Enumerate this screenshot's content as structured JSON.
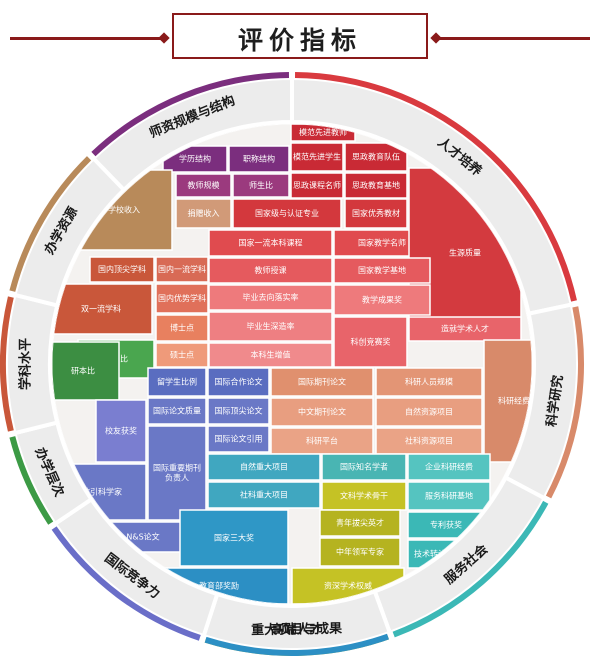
{
  "title": "评价指标",
  "categories": [
    {
      "key": "teachers",
      "label": "师资规模与结构",
      "color": "#7b2e7e"
    },
    {
      "key": "talent",
      "label": "人才培养",
      "color": "#d93a3f"
    },
    {
      "key": "research",
      "label": "科学研究",
      "color": "#d88a6a"
    },
    {
      "key": "service",
      "label": "服务社会",
      "color": "#3bb8b6"
    },
    {
      "key": "talents",
      "label": "高端人才",
      "color": "#c5c225"
    },
    {
      "key": "projects",
      "label": "重大项目与成果",
      "color": "#2c8fc4"
    },
    {
      "key": "competitiveness",
      "label": "国际竞争力",
      "color": "#6a6ec8"
    },
    {
      "key": "level",
      "label": "办学层次",
      "color": "#3c9a45"
    },
    {
      "key": "discipline",
      "label": "学科水平",
      "color": "#c9573a"
    },
    {
      "key": "resources",
      "label": "办学资源",
      "color": "#b88a5a"
    }
  ],
  "cells": [
    {
      "label": "模范先进教师"
    },
    {
      "label": "学历结构"
    },
    {
      "label": "职称结构"
    },
    {
      "label": "模范先进学生"
    },
    {
      "label": "思政教育队伍"
    },
    {
      "label": "教师规模"
    },
    {
      "label": "师生比"
    },
    {
      "label": "思政课程名师"
    },
    {
      "label": "思政教育基地"
    },
    {
      "label": "学校收入"
    },
    {
      "label": "捐赠收入"
    },
    {
      "label": "国家级与认证专业"
    },
    {
      "label": "国家优秀教材"
    },
    {
      "label": "国家一流本科课程"
    },
    {
      "label": "国家教学名师"
    },
    {
      "label": "生源质量"
    },
    {
      "label": "国内顶尖学科"
    },
    {
      "label": "国内一流学科"
    },
    {
      "label": "教师授课"
    },
    {
      "label": "国家教学基地"
    },
    {
      "label": "双一流学科"
    },
    {
      "label": "国内优势学科"
    },
    {
      "label": "毕业去向落实率"
    },
    {
      "label": "教学成果奖"
    },
    {
      "label": "博士点"
    },
    {
      "label": "毕业生深造率"
    },
    {
      "label": "造就学术人才"
    },
    {
      "label": "科创竞赛奖"
    },
    {
      "label": "本专比"
    },
    {
      "label": "硕士点"
    },
    {
      "label": "本科生增值"
    },
    {
      "label": "研本比"
    },
    {
      "label": "留学生比例"
    },
    {
      "label": "国际合作论文"
    },
    {
      "label": "国际期刊论文"
    },
    {
      "label": "科研人员规模"
    },
    {
      "label": "国际论文质量"
    },
    {
      "label": "国际顶尖论文"
    },
    {
      "label": "中文期刊论文"
    },
    {
      "label": "自然资源项目"
    },
    {
      "label": "科研经费"
    },
    {
      "label": "校友获奖"
    },
    {
      "label": "国际论文引用"
    },
    {
      "label": "科研平台"
    },
    {
      "label": "社科资源项目"
    },
    {
      "label": "国际重要期刊负责人"
    },
    {
      "label": "自然重大项目"
    },
    {
      "label": "国际知名学者"
    },
    {
      "label": "企业科研经费"
    },
    {
      "label": "高被引科学家"
    },
    {
      "label": "社科重大项目"
    },
    {
      "label": "文科学术骨干"
    },
    {
      "label": "服务科研基地"
    },
    {
      "label": "N&S论文"
    },
    {
      "label": "国家三大奖"
    },
    {
      "label": "青年拔尖英才"
    },
    {
      "label": "专利获奖"
    },
    {
      "label": "中年领军专家"
    },
    {
      "label": "技术转让收入"
    },
    {
      "label": "教育部奖励"
    },
    {
      "label": "资深学术权威"
    }
  ]
}
